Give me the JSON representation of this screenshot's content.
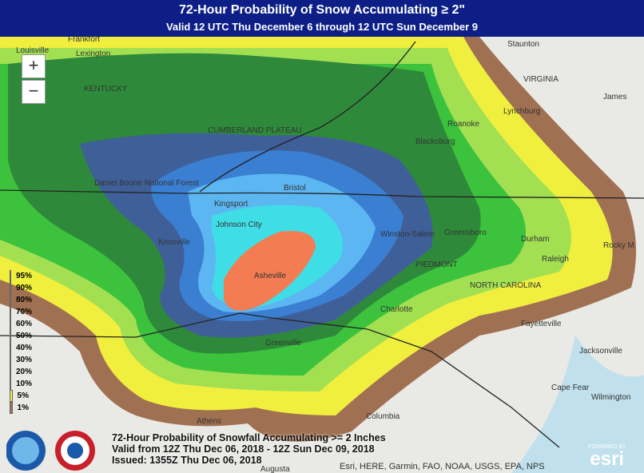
{
  "header": {
    "title": "72-Hour Probability of Snow Accumulating ≥ 2\"",
    "subtitle": "Valid 12 UTC Thu December 6 through 12 UTC Sun December 9"
  },
  "zoom": {
    "in": "+",
    "out": "−"
  },
  "legend": [
    {
      "label": "95%",
      "color": "#8b0a0a"
    },
    {
      "label": "90%",
      "color": "#e52222"
    },
    {
      "label": "80%",
      "color": "#f47c52"
    },
    {
      "label": "70%",
      "color": "#3fdde6"
    },
    {
      "label": "60%",
      "color": "#5cb6f2"
    },
    {
      "label": "50%",
      "color": "#3b7fd2"
    },
    {
      "label": "40%",
      "color": "#2c4f8a"
    },
    {
      "label": "30%",
      "color": "#1f7a2c"
    },
    {
      "label": "20%",
      "color": "#3cc23c"
    },
    {
      "label": "10%",
      "color": "#a2e052"
    },
    {
      "label": "5%",
      "color": "#f0ef3e"
    },
    {
      "label": "1%",
      "color": "#a07052"
    }
  ],
  "caption": [
    "72-Hour Probability of Snowfall Accumulating >= 2 Inches",
    "Valid from 12Z Thu Dec 06, 2018 - 12Z Sun Dec 09, 2018",
    "Issued: 1355Z Thu Dec 06, 2018"
  ],
  "attribution": "Esri, HERE, Garmin, FAO, NOAA, USGS, EPA, NPS",
  "esri": {
    "powered": "POWERED BY",
    "name": "esri"
  },
  "places": [
    "Louisville",
    "Frankfort",
    "Lexington",
    "KENTUCKY",
    "Staunton",
    "VIRGINIA",
    "James",
    "Lynchburg",
    "Roanoke",
    "Blacksburg",
    "CUMBERLAND PLATEAU",
    "Daniel Boone National Forest",
    "Bristol",
    "Kingsport",
    "Johnson City",
    "Knoxville",
    "Asheville",
    "Winston-Salem",
    "Greensboro",
    "Durham",
    "Raleigh",
    "Rocky M",
    "PIEDMONT",
    "NORTH CAROLINA",
    "Charlotte",
    "Fayetteville",
    "Greenville",
    "Jacksonville",
    "Cape Fear",
    "Wilmington",
    "Columbia",
    "Athens",
    "Augusta"
  ]
}
